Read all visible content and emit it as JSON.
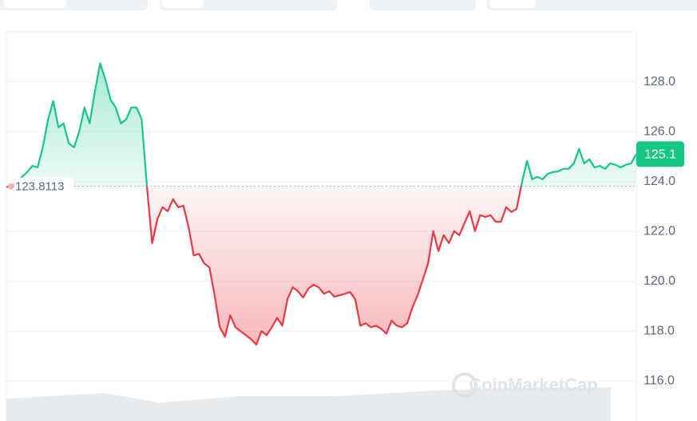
{
  "chart_data": {
    "type": "line",
    "values": [
      123.77,
      123.87,
      124.0,
      124.19,
      124.38,
      124.63,
      124.57,
      125.37,
      126.49,
      127.23,
      126.17,
      126.33,
      125.53,
      125.37,
      126.01,
      126.97,
      126.33,
      127.62,
      128.74,
      128.1,
      127.29,
      126.97,
      126.33,
      126.49,
      126.97,
      126.97,
      126.49,
      123.77,
      121.53,
      122.49,
      122.97,
      122.81,
      123.29,
      122.97,
      123.03,
      122.17,
      121.04,
      121.1,
      120.72,
      120.56,
      119.44,
      118.16,
      117.78,
      118.64,
      118.16,
      118.0,
      117.84,
      117.68,
      117.46,
      118.0,
      117.84,
      118.16,
      118.54,
      118.22,
      119.28,
      119.76,
      119.6,
      119.35,
      119.71,
      119.86,
      119.76,
      119.5,
      119.6,
      119.38,
      119.44,
      119.5,
      119.57,
      119.28,
      118.22,
      118.32,
      118.16,
      118.22,
      118.1,
      117.9,
      118.42,
      118.22,
      118.16,
      118.32,
      118.96,
      119.44,
      120.08,
      120.72,
      122.01,
      121.21,
      121.85,
      121.53,
      122.01,
      121.85,
      122.33,
      122.81,
      122.01,
      122.65,
      122.58,
      122.65,
      122.39,
      122.39,
      122.97,
      122.78,
      122.9,
      123.93,
      124.83,
      124.09,
      124.19,
      124.09,
      124.31,
      124.38,
      124.41,
      124.51,
      124.51,
      124.73,
      125.31,
      124.73,
      124.89,
      124.57,
      124.63,
      124.51,
      124.73,
      124.67,
      124.57,
      124.67,
      124.73,
      125.1
    ],
    "baseline": 123.8113,
    "current_price": 125.1,
    "up_color": "#16c784",
    "down_color": "#ea3943",
    "ylim": [
      114.4,
      130.0
    ],
    "yticks": [
      {
        "value": 116,
        "label": "116.0"
      },
      {
        "value": 118,
        "label": "118.0"
      },
      {
        "value": 120,
        "label": "120.0"
      },
      {
        "value": 122,
        "label": "122.0"
      },
      {
        "value": 124,
        "label": "124.0"
      },
      {
        "value": 126,
        "label": "126.0"
      },
      {
        "value": 128,
        "label": "128.0"
      }
    ],
    "grid": true,
    "watermark": "CoinMarketCap"
  }
}
